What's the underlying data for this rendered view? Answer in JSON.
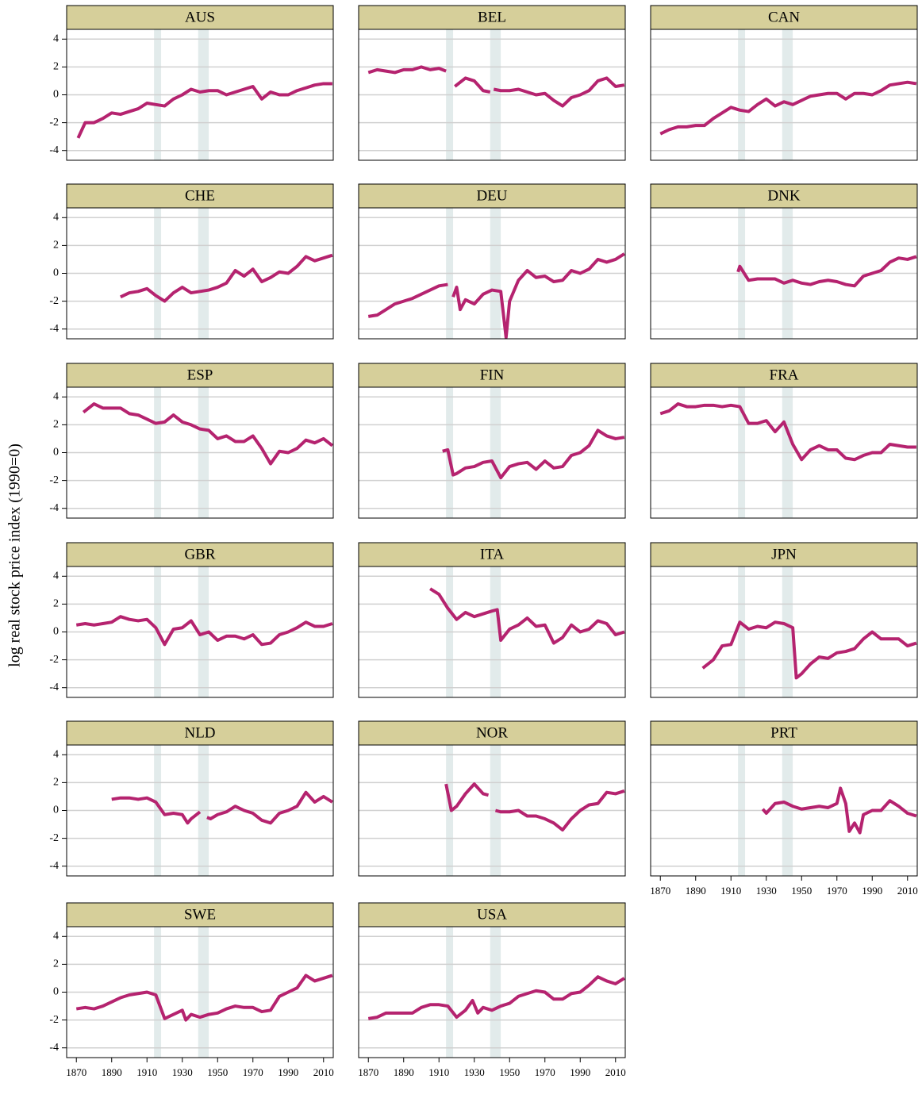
{
  "ylabel": "log real stock price index (1990=0)",
  "shaded_periods": [
    [
      1914,
      1918
    ],
    [
      1939,
      1945
    ]
  ],
  "chart_data": [
    {
      "type": "line",
      "title": "AUS",
      "color": "#b5236f",
      "grid": true,
      "xlim": [
        1864.5,
        2015.5
      ],
      "ylim": [
        -4.7,
        4.7
      ],
      "yticks": [
        -4,
        -2,
        0,
        2,
        4
      ],
      "x": [
        1871,
        1875,
        1880,
        1885,
        1890,
        1895,
        1900,
        1905,
        1910,
        1915,
        1920,
        1925,
        1930,
        1935,
        1940,
        1945,
        1950,
        1955,
        1960,
        1965,
        1970,
        1975,
        1980,
        1985,
        1990,
        1995,
        2000,
        2005,
        2010,
        2015
      ],
      "values": [
        -3.1,
        -2.0,
        -2.0,
        -1.7,
        -1.3,
        -1.4,
        -1.2,
        -1.0,
        -0.6,
        -0.7,
        -0.8,
        -0.3,
        0.0,
        0.4,
        0.2,
        0.3,
        0.3,
        0.0,
        0.2,
        0.4,
        0.6,
        -0.3,
        0.2,
        0.0,
        0.0,
        0.3,
        0.5,
        0.7,
        0.8,
        0.8
      ]
    },
    {
      "type": "line",
      "title": "BEL",
      "color": "#b5236f",
      "grid": true,
      "xlim": [
        1864.5,
        2015.5
      ],
      "ylim": [
        -4.7,
        4.7
      ],
      "yticks": [
        -4,
        -2,
        0,
        2,
        4
      ],
      "x": [
        1870,
        1875,
        1880,
        1885,
        1890,
        1895,
        1900,
        1905,
        1910,
        1914,
        1916,
        1919,
        1925,
        1930,
        1935,
        1939,
        1940,
        1941,
        1945,
        1950,
        1955,
        1960,
        1965,
        1970,
        1975,
        1980,
        1985,
        1990,
        1995,
        2000,
        2005,
        2010,
        2015
      ],
      "values": [
        1.6,
        1.8,
        1.7,
        1.6,
        1.8,
        1.8,
        2.0,
        1.8,
        1.9,
        1.7,
        null,
        0.6,
        1.2,
        1.0,
        0.3,
        0.2,
        null,
        0.4,
        0.3,
        0.3,
        0.4,
        0.2,
        0.0,
        0.1,
        -0.4,
        -0.8,
        -0.2,
        0.0,
        0.3,
        1.0,
        1.2,
        0.6,
        0.7
      ]
    },
    {
      "type": "line",
      "title": "CAN",
      "color": "#b5236f",
      "grid": true,
      "xlim": [
        1864.5,
        2015.5
      ],
      "ylim": [
        -4.7,
        4.7
      ],
      "yticks": [
        -4,
        -2,
        0,
        2,
        4
      ],
      "x": [
        1870,
        1875,
        1880,
        1885,
        1890,
        1895,
        1900,
        1905,
        1910,
        1915,
        1920,
        1925,
        1930,
        1935,
        1940,
        1945,
        1950,
        1955,
        1960,
        1965,
        1970,
        1975,
        1980,
        1985,
        1990,
        1995,
        2000,
        2005,
        2010,
        2015
      ],
      "values": [
        -2.8,
        -2.5,
        -2.3,
        -2.3,
        -2.2,
        -2.2,
        -1.7,
        -1.3,
        -0.9,
        -1.1,
        -1.2,
        -0.7,
        -0.3,
        -0.8,
        -0.5,
        -0.7,
        -0.4,
        -0.1,
        0.0,
        0.1,
        0.1,
        -0.3,
        0.1,
        0.1,
        0.0,
        0.3,
        0.7,
        0.8,
        0.9,
        0.8
      ]
    },
    {
      "type": "line",
      "title": "CHE",
      "color": "#b5236f",
      "grid": true,
      "xlim": [
        1864.5,
        2015.5
      ],
      "ylim": [
        -4.7,
        4.7
      ],
      "yticks": [
        -4,
        -2,
        0,
        2,
        4
      ],
      "x": [
        1895,
        1900,
        1905,
        1910,
        1915,
        1920,
        1925,
        1930,
        1935,
        1940,
        1945,
        1950,
        1955,
        1960,
        1965,
        1970,
        1975,
        1980,
        1985,
        1990,
        1995,
        2000,
        2005,
        2010,
        2015
      ],
      "values": [
        -1.7,
        -1.4,
        -1.3,
        -1.1,
        -1.6,
        -2.0,
        -1.4,
        -1.0,
        -1.4,
        -1.3,
        -1.2,
        -1.0,
        -0.7,
        0.2,
        -0.2,
        0.3,
        -0.6,
        -0.3,
        0.1,
        0.0,
        0.5,
        1.2,
        0.9,
        1.1,
        1.3
      ]
    },
    {
      "type": "line",
      "title": "DEU",
      "color": "#b5236f",
      "grid": true,
      "xlim": [
        1864.5,
        2015.5
      ],
      "ylim": [
        -4.7,
        4.7
      ],
      "yticks": [
        -4,
        -2,
        0,
        2,
        4
      ],
      "x": [
        1870,
        1875,
        1880,
        1885,
        1890,
        1895,
        1900,
        1905,
        1910,
        1915,
        1917,
        1918,
        1920,
        1922,
        1925,
        1930,
        1935,
        1940,
        1945,
        1948,
        1950,
        1955,
        1960,
        1965,
        1970,
        1975,
        1980,
        1985,
        1990,
        1995,
        2000,
        2005,
        2010,
        2015
      ],
      "values": [
        -3.1,
        -3.0,
        -2.6,
        -2.2,
        -2.0,
        -1.8,
        -1.5,
        -1.2,
        -0.9,
        -0.8,
        null,
        -1.7,
        -1.0,
        -2.6,
        -1.9,
        -2.2,
        -1.5,
        -1.2,
        -1.3,
        -4.6,
        -2.0,
        -0.5,
        0.2,
        -0.3,
        -0.2,
        -0.6,
        -0.5,
        0.2,
        0.0,
        0.3,
        1.0,
        0.8,
        1.0,
        1.4
      ]
    },
    {
      "type": "line",
      "title": "DNK",
      "color": "#b5236f",
      "grid": true,
      "xlim": [
        1864.5,
        2015.5
      ],
      "ylim": [
        -4.7,
        4.7
      ],
      "yticks": [
        -4,
        -2,
        0,
        2,
        4
      ],
      "x": [
        1914,
        1915,
        1920,
        1925,
        1930,
        1935,
        1940,
        1945,
        1950,
        1955,
        1960,
        1965,
        1970,
        1975,
        1980,
        1985,
        1990,
        1995,
        2000,
        2005,
        2010,
        2015
      ],
      "values": [
        0.1,
        0.5,
        -0.5,
        -0.4,
        -0.4,
        -0.4,
        -0.7,
        -0.5,
        -0.7,
        -0.8,
        -0.6,
        -0.5,
        -0.6,
        -0.8,
        -0.9,
        -0.2,
        0.0,
        0.2,
        0.8,
        1.1,
        1.0,
        1.2
      ]
    },
    {
      "type": "line",
      "title": "ESP",
      "color": "#b5236f",
      "grid": true,
      "xlim": [
        1864.5,
        2015.5
      ],
      "ylim": [
        -4.7,
        4.7
      ],
      "yticks": [
        -4,
        -2,
        0,
        2,
        4
      ],
      "x": [
        1874,
        1880,
        1885,
        1890,
        1895,
        1900,
        1905,
        1910,
        1915,
        1920,
        1925,
        1930,
        1935,
        1940,
        1945,
        1950,
        1955,
        1960,
        1965,
        1970,
        1975,
        1980,
        1985,
        1990,
        1995,
        2000,
        2005,
        2010,
        2015
      ],
      "values": [
        2.9,
        3.5,
        3.2,
        3.2,
        3.2,
        2.8,
        2.7,
        2.4,
        2.1,
        2.2,
        2.7,
        2.2,
        2.0,
        1.7,
        1.6,
        1.0,
        1.2,
        0.8,
        0.8,
        1.2,
        0.3,
        -0.8,
        0.1,
        0.0,
        0.3,
        0.9,
        0.7,
        1.0,
        0.5
      ]
    },
    {
      "type": "line",
      "title": "FIN",
      "color": "#b5236f",
      "grid": true,
      "xlim": [
        1864.5,
        2015.5
      ],
      "ylim": [
        -4.7,
        4.7
      ],
      "yticks": [
        -4,
        -2,
        0,
        2,
        4
      ],
      "x": [
        1912,
        1915,
        1918,
        1920,
        1925,
        1930,
        1935,
        1940,
        1945,
        1950,
        1955,
        1960,
        1965,
        1970,
        1975,
        1980,
        1985,
        1990,
        1995,
        2000,
        2005,
        2010,
        2015
      ],
      "values": [
        0.1,
        0.2,
        -1.6,
        -1.5,
        -1.1,
        -1.0,
        -0.7,
        -0.6,
        -1.8,
        -1.0,
        -0.8,
        -0.7,
        -1.2,
        -0.6,
        -1.1,
        -1.0,
        -0.2,
        0.0,
        0.5,
        1.6,
        1.2,
        1.0,
        1.1
      ]
    },
    {
      "type": "line",
      "title": "FRA",
      "color": "#b5236f",
      "grid": true,
      "xlim": [
        1864.5,
        2015.5
      ],
      "ylim": [
        -4.7,
        4.7
      ],
      "yticks": [
        -4,
        -2,
        0,
        2,
        4
      ],
      "x": [
        1870,
        1875,
        1880,
        1885,
        1890,
        1895,
        1900,
        1905,
        1910,
        1915,
        1920,
        1925,
        1930,
        1935,
        1940,
        1945,
        1950,
        1955,
        1960,
        1965,
        1970,
        1975,
        1980,
        1985,
        1990,
        1995,
        2000,
        2005,
        2010,
        2015
      ],
      "values": [
        2.8,
        3.0,
        3.5,
        3.3,
        3.3,
        3.4,
        3.4,
        3.3,
        3.4,
        3.3,
        2.1,
        2.1,
        2.3,
        1.5,
        2.2,
        0.6,
        -0.5,
        0.2,
        0.5,
        0.2,
        0.2,
        -0.4,
        -0.5,
        -0.2,
        0.0,
        0.0,
        0.6,
        0.5,
        0.4,
        0.4
      ]
    },
    {
      "type": "line",
      "title": "GBR",
      "color": "#b5236f",
      "grid": true,
      "xlim": [
        1864.5,
        2015.5
      ],
      "ylim": [
        -4.7,
        4.7
      ],
      "yticks": [
        -4,
        -2,
        0,
        2,
        4
      ],
      "x": [
        1870,
        1875,
        1880,
        1885,
        1890,
        1895,
        1900,
        1905,
        1910,
        1915,
        1920,
        1925,
        1930,
        1935,
        1940,
        1945,
        1950,
        1955,
        1960,
        1965,
        1970,
        1975,
        1980,
        1985,
        1990,
        1995,
        2000,
        2005,
        2010,
        2015
      ],
      "values": [
        0.5,
        0.6,
        0.5,
        0.6,
        0.7,
        1.1,
        0.9,
        0.8,
        0.9,
        0.3,
        -0.9,
        0.2,
        0.3,
        0.8,
        -0.2,
        0.0,
        -0.6,
        -0.3,
        -0.3,
        -0.5,
        -0.2,
        -0.9,
        -0.8,
        -0.2,
        0.0,
        0.3,
        0.7,
        0.4,
        0.4,
        0.6
      ]
    },
    {
      "type": "line",
      "title": "ITA",
      "color": "#b5236f",
      "grid": true,
      "xlim": [
        1864.5,
        2015.5
      ],
      "ylim": [
        -4.7,
        4.7
      ],
      "yticks": [
        -4,
        -2,
        0,
        2,
        4
      ],
      "x": [
        1905,
        1910,
        1915,
        1920,
        1925,
        1930,
        1935,
        1940,
        1943,
        1945,
        1950,
        1955,
        1960,
        1965,
        1970,
        1975,
        1980,
        1985,
        1990,
        1995,
        2000,
        2005,
        2010,
        2015
      ],
      "values": [
        3.1,
        2.7,
        1.7,
        0.9,
        1.4,
        1.1,
        1.3,
        1.5,
        1.6,
        -0.6,
        0.2,
        0.5,
        1.0,
        0.4,
        0.5,
        -0.8,
        -0.4,
        0.5,
        0.0,
        0.2,
        0.8,
        0.6,
        -0.2,
        0.0
      ]
    },
    {
      "type": "line",
      "title": "JPN",
      "color": "#b5236f",
      "grid": true,
      "xlim": [
        1864.5,
        2015.5
      ],
      "ylim": [
        -4.7,
        4.7
      ],
      "yticks": [
        -4,
        -2,
        0,
        2,
        4
      ],
      "x": [
        1894,
        1900,
        1905,
        1910,
        1915,
        1920,
        1925,
        1930,
        1935,
        1940,
        1945,
        1947,
        1950,
        1955,
        1960,
        1965,
        1970,
        1975,
        1980,
        1985,
        1990,
        1995,
        2000,
        2005,
        2010,
        2015
      ],
      "values": [
        -2.6,
        -2.0,
        -1.0,
        -0.9,
        0.7,
        0.2,
        0.4,
        0.3,
        0.7,
        0.6,
        0.3,
        -3.3,
        -3.0,
        -2.3,
        -1.8,
        -1.9,
        -1.5,
        -1.4,
        -1.2,
        -0.5,
        0.0,
        -0.5,
        -0.5,
        -0.5,
        -1.0,
        -0.8
      ]
    },
    {
      "type": "line",
      "title": "NLD",
      "color": "#b5236f",
      "grid": true,
      "xlim": [
        1864.5,
        2015.5
      ],
      "ylim": [
        -4.7,
        4.7
      ],
      "yticks": [
        -4,
        -2,
        0,
        2,
        4
      ],
      "x": [
        1890,
        1895,
        1900,
        1905,
        1910,
        1915,
        1920,
        1925,
        1930,
        1933,
        1935,
        1940,
        1942,
        1944,
        1946,
        1950,
        1955,
        1960,
        1965,
        1970,
        1975,
        1980,
        1985,
        1990,
        1995,
        2000,
        2005,
        2010,
        2015
      ],
      "values": [
        0.8,
        0.9,
        0.9,
        0.8,
        0.9,
        0.6,
        -0.3,
        -0.2,
        -0.3,
        -0.9,
        -0.6,
        -0.1,
        null,
        -0.5,
        -0.6,
        -0.3,
        -0.1,
        0.3,
        0.0,
        -0.2,
        -0.7,
        -0.9,
        -0.2,
        0.0,
        0.3,
        1.3,
        0.6,
        1.0,
        0.6
      ]
    },
    {
      "type": "line",
      "title": "NOR",
      "color": "#b5236f",
      "grid": true,
      "xlim": [
        1864.5,
        2015.5
      ],
      "ylim": [
        -4.7,
        4.7
      ],
      "yticks": [
        -4,
        -2,
        0,
        2,
        4
      ],
      "x": [
        1914,
        1917,
        1920,
        1925,
        1930,
        1935,
        1938,
        1940,
        1942,
        1945,
        1950,
        1955,
        1960,
        1965,
        1970,
        1975,
        1980,
        1985,
        1990,
        1995,
        2000,
        2005,
        2010,
        2015
      ],
      "values": [
        1.9,
        0.0,
        0.3,
        1.2,
        1.9,
        1.2,
        1.1,
        null,
        0.0,
        -0.1,
        -0.1,
        0.0,
        -0.4,
        -0.4,
        -0.6,
        -0.9,
        -1.4,
        -0.6,
        0.0,
        0.4,
        0.5,
        1.3,
        1.2,
        1.4
      ]
    },
    {
      "type": "line",
      "title": "PRT",
      "color": "#b5236f",
      "grid": true,
      "xlim": [
        1864.5,
        2015.5
      ],
      "ylim": [
        -4.7,
        4.7
      ],
      "yticks": [
        -4,
        -2,
        0,
        2,
        4
      ],
      "xticks": [
        1870,
        1890,
        1910,
        1930,
        1950,
        1970,
        1990,
        2010
      ],
      "x": [
        1928,
        1930,
        1935,
        1940,
        1945,
        1950,
        1955,
        1960,
        1965,
        1970,
        1972,
        1975,
        1977,
        1980,
        1983,
        1985,
        1990,
        1995,
        2000,
        2005,
        2010,
        2015
      ],
      "values": [
        0.1,
        -0.2,
        0.5,
        0.6,
        0.3,
        0.1,
        0.2,
        0.3,
        0.2,
        0.5,
        1.6,
        0.5,
        -1.5,
        -0.9,
        -1.6,
        -0.3,
        0.0,
        0.0,
        0.7,
        0.3,
        -0.2,
        -0.4
      ]
    },
    {
      "type": "line",
      "title": "SWE",
      "color": "#b5236f",
      "grid": true,
      "xlim": [
        1864.5,
        2015.5
      ],
      "ylim": [
        -4.7,
        4.7
      ],
      "yticks": [
        -4,
        -2,
        0,
        2,
        4
      ],
      "xticks": [
        1870,
        1890,
        1910,
        1930,
        1950,
        1970,
        1990,
        2010
      ],
      "x": [
        1870,
        1875,
        1880,
        1885,
        1890,
        1895,
        1900,
        1905,
        1910,
        1915,
        1920,
        1925,
        1930,
        1932,
        1935,
        1940,
        1945,
        1950,
        1955,
        1960,
        1965,
        1970,
        1975,
        1980,
        1985,
        1990,
        1995,
        2000,
        2005,
        2010,
        2015
      ],
      "values": [
        -1.2,
        -1.1,
        -1.2,
        -1.0,
        -0.7,
        -0.4,
        -0.2,
        -0.1,
        0.0,
        -0.2,
        -1.9,
        -1.6,
        -1.3,
        -2.0,
        -1.6,
        -1.8,
        -1.6,
        -1.5,
        -1.2,
        -1.0,
        -1.1,
        -1.1,
        -1.4,
        -1.3,
        -0.3,
        0.0,
        0.3,
        1.2,
        0.8,
        1.0,
        1.2
      ]
    },
    {
      "type": "line",
      "title": "USA",
      "color": "#b5236f",
      "grid": true,
      "xlim": [
        1864.5,
        2015.5
      ],
      "ylim": [
        -4.7,
        4.7
      ],
      "yticks": [
        -4,
        -2,
        0,
        2,
        4
      ],
      "xticks": [
        1870,
        1890,
        1910,
        1930,
        1950,
        1970,
        1990,
        2010
      ],
      "x": [
        1870,
        1875,
        1880,
        1885,
        1890,
        1895,
        1900,
        1905,
        1910,
        1915,
        1920,
        1925,
        1929,
        1932,
        1935,
        1940,
        1945,
        1950,
        1955,
        1960,
        1965,
        1970,
        1975,
        1980,
        1985,
        1990,
        1995,
        2000,
        2005,
        2010,
        2015
      ],
      "values": [
        -1.9,
        -1.8,
        -1.5,
        -1.5,
        -1.5,
        -1.5,
        -1.1,
        -0.9,
        -0.9,
        -1.0,
        -1.8,
        -1.3,
        -0.6,
        -1.5,
        -1.1,
        -1.3,
        -1.0,
        -0.8,
        -0.3,
        -0.1,
        0.1,
        0.0,
        -0.5,
        -0.5,
        -0.1,
        0.0,
        0.5,
        1.1,
        0.8,
        0.6,
        1.0
      ]
    }
  ]
}
